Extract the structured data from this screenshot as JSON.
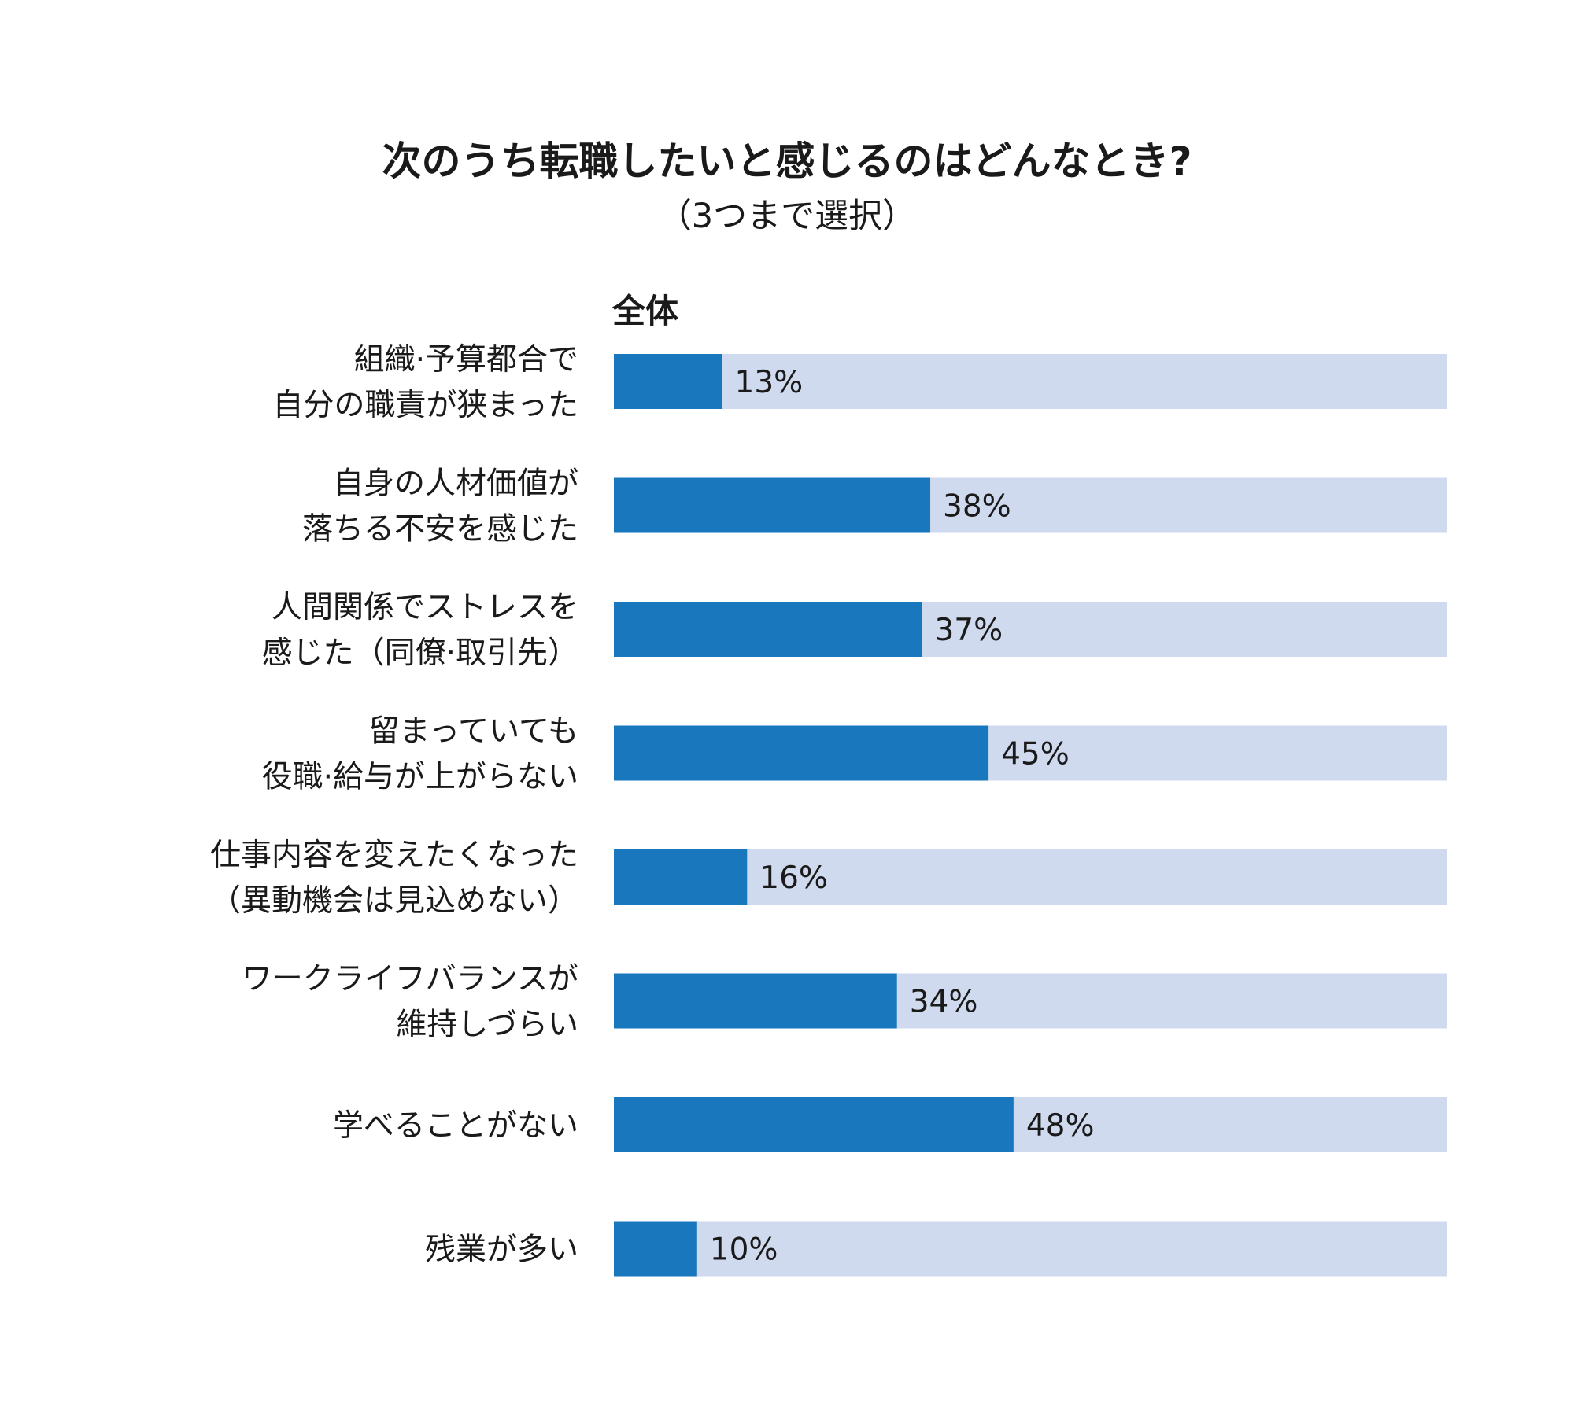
{
  "chart_data": {
    "type": "bar",
    "orientation": "horizontal",
    "title": "次のうち転職したいと感じるのはどんなとき?",
    "subtitle": "（3つまで選択）",
    "series_label": "全体",
    "xlim": [
      0,
      100
    ],
    "value_suffix": "%",
    "colors": {
      "bar": "#1877BD",
      "track": "#D0DAEE"
    },
    "categories": [
      [
        "組織·予算都合で",
        "自分の職責が狭まった"
      ],
      [
        "自身の人材価値が",
        "落ちる不安を感じた"
      ],
      [
        "人間関係でストレスを",
        "感じた（同僚·取引先）"
      ],
      [
        "留まっていても",
        "役職·給与が上がらない"
      ],
      [
        "仕事内容を変えたくなった",
        "（異動機会は見込めない）"
      ],
      [
        "ワークライフバランスが",
        "維持しづらい"
      ],
      [
        "学べることがない"
      ],
      [
        "残業が多い"
      ]
    ],
    "series": [
      {
        "name": "全体",
        "values": [
          13,
          38,
          37,
          45,
          16,
          34,
          48,
          10
        ]
      }
    ]
  }
}
